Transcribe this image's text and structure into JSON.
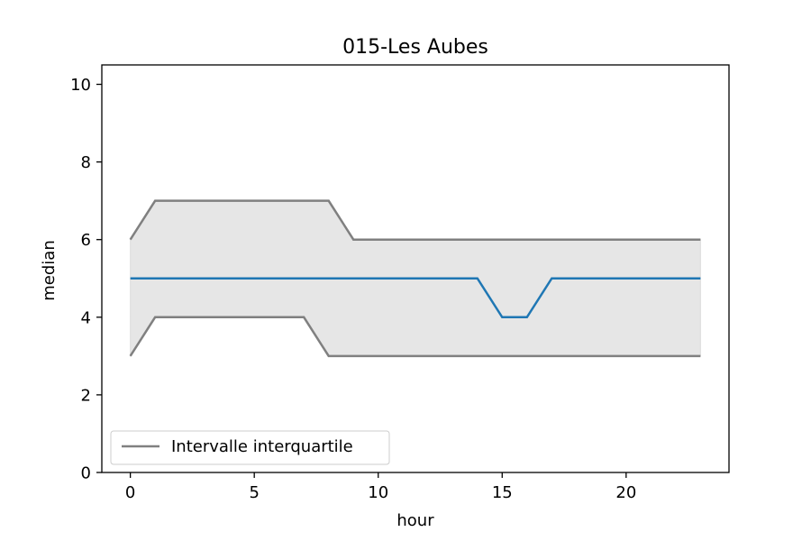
{
  "chart_data": {
    "type": "line",
    "title": "015-Les Aubes",
    "xlabel": "hour",
    "ylabel": "median",
    "x": [
      0,
      1,
      2,
      3,
      4,
      5,
      6,
      7,
      8,
      9,
      10,
      11,
      12,
      13,
      14,
      15,
      16,
      17,
      18,
      19,
      20,
      21,
      22,
      23
    ],
    "xlim": [
      -1.15,
      24.15
    ],
    "ylim": [
      0,
      10.5
    ],
    "xticks": [
      0,
      5,
      10,
      15,
      20
    ],
    "yticks": [
      0,
      2,
      4,
      6,
      8,
      10
    ],
    "grid": false,
    "legend_position": "lower-left",
    "series": [
      {
        "role": "median",
        "color": "#1f77b4",
        "values": [
          5,
          5,
          5,
          5,
          5,
          5,
          5,
          5,
          5,
          5,
          5,
          5,
          5,
          5,
          5,
          4,
          4,
          5,
          5,
          5,
          5,
          5,
          5,
          5
        ]
      },
      {
        "role": "upper-quartile",
        "name": "Intervalle interquartile",
        "color": "#808080",
        "values": [
          6,
          7,
          7,
          7,
          7,
          7,
          7,
          7,
          7,
          6,
          6,
          6,
          6,
          6,
          6,
          6,
          6,
          6,
          6,
          6,
          6,
          6,
          6,
          6
        ]
      },
      {
        "role": "lower-quartile",
        "color": "#808080",
        "values": [
          3,
          4,
          4,
          4,
          4,
          4,
          4,
          4,
          3,
          3,
          3,
          3,
          3,
          3,
          3,
          3,
          3,
          3,
          3,
          3,
          3,
          3,
          3,
          3
        ]
      }
    ],
    "band": {
      "between": [
        "upper-quartile",
        "lower-quartile"
      ],
      "color": "#808080",
      "opacity": 0.2
    },
    "legend": [
      {
        "label": "Intervalle interquartile",
        "color": "#808080"
      }
    ]
  }
}
